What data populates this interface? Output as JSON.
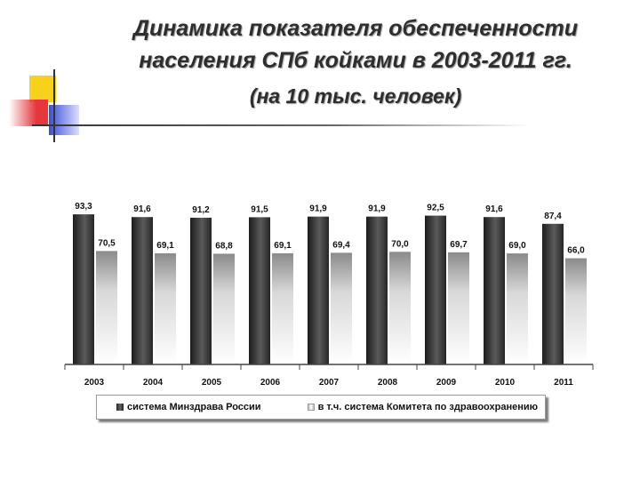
{
  "title": "Динамика показателя обеспеченности населения СПб койками в 2003-2011 гг.",
  "subtitle": "(на 10 тыс. человек)",
  "chart_data": {
    "type": "bar",
    "title": "Динамика показателя обеспеченности населения СПб койками в 2003-2011 гг.",
    "subtitle": "(на 10 тыс. человек)",
    "categories": [
      "2003",
      "2004",
      "2005",
      "2006",
      "2007",
      "2008",
      "2009",
      "2010",
      "2011"
    ],
    "series": [
      {
        "name": "система Минздрава России",
        "values": [
          93.3,
          91.6,
          91.2,
          91.5,
          91.9,
          91.9,
          92.5,
          91.6,
          87.4
        ],
        "labels": [
          "93,3",
          "91,6",
          "91,2",
          "91,5",
          "91,9",
          "91,9",
          "92,5",
          "91,6",
          "87,4"
        ],
        "color": "#3a3a3a"
      },
      {
        "name": "в т.ч. система Комитета по здравоохранению",
        "values": [
          70.5,
          69.1,
          68.8,
          69.1,
          69.4,
          70.0,
          69.7,
          69.0,
          66.0
        ],
        "labels": [
          "70,5",
          "69,1",
          "68,8",
          "69,1",
          "69,4",
          "70,0",
          "69,7",
          "69,0",
          "66,0"
        ],
        "color": "#e8e8e8"
      }
    ],
    "xlabel": "",
    "ylabel": "",
    "ylim": [
      0,
      100
    ],
    "grid": false,
    "legend": "bottom"
  }
}
